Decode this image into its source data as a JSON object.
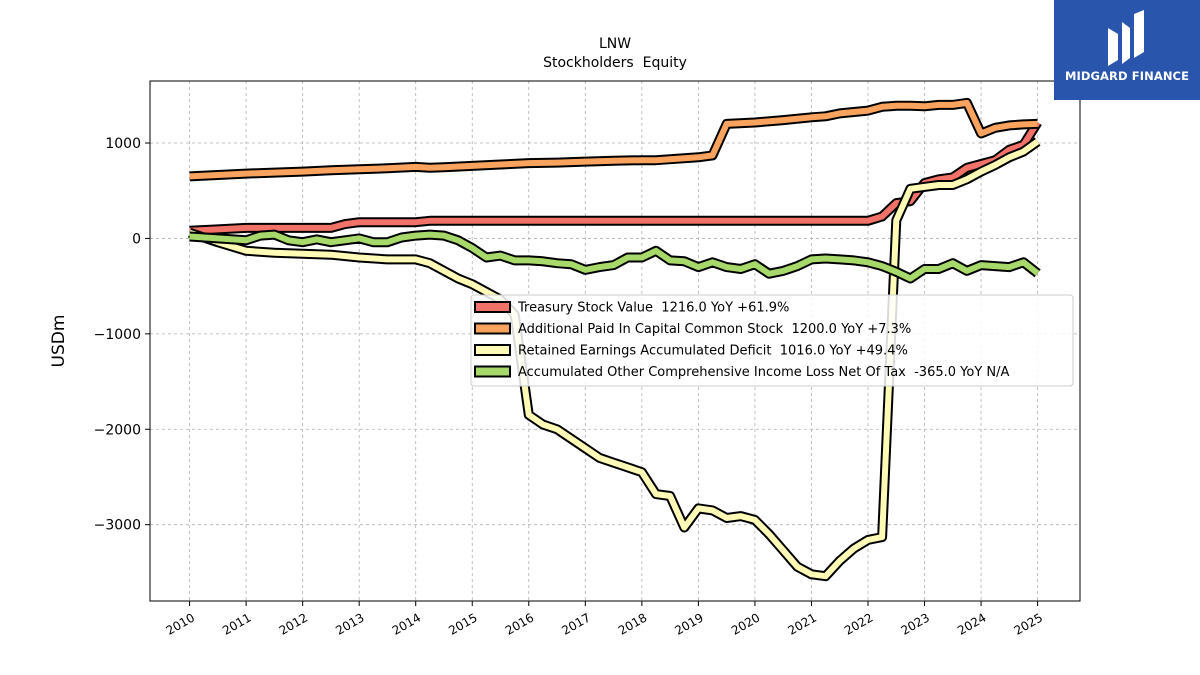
{
  "chart_data": {
    "type": "line",
    "title": "LNW",
    "subtitle": "Stockholders  Equity",
    "xlabel": "",
    "ylabel": "USDm",
    "xlim": [
      2009.3,
      2025.75
    ],
    "ylim": [
      -3800,
      1650
    ],
    "x_ticks": [
      "2010",
      "2011",
      "2012",
      "2013",
      "2014",
      "2015",
      "2016",
      "2017",
      "2018",
      "2019",
      "2020",
      "2021",
      "2022",
      "2023",
      "2024",
      "2025"
    ],
    "y_ticks": [
      1000,
      0,
      -1000,
      -2000,
      -3000
    ],
    "y_tick_labels": [
      "1000",
      "0",
      "−1000",
      "−2000",
      "−3000"
    ],
    "grid": true,
    "legend_placement": "center-right",
    "series": [
      {
        "name": "Treasury Stock Value  1216.0 YoY +61.9%",
        "color": "#f07268",
        "points": [
          [
            2010,
            80
          ],
          [
            2010.5,
            95
          ],
          [
            2011,
            110
          ],
          [
            2011.5,
            110
          ],
          [
            2012,
            110
          ],
          [
            2012.5,
            110
          ],
          [
            2012.75,
            150
          ],
          [
            2013,
            170
          ],
          [
            2013.5,
            170
          ],
          [
            2014,
            170
          ],
          [
            2014.25,
            185
          ],
          [
            2015,
            185
          ],
          [
            2016,
            185
          ],
          [
            2017,
            185
          ],
          [
            2018,
            185
          ],
          [
            2019,
            185
          ],
          [
            2020,
            185
          ],
          [
            2021,
            185
          ],
          [
            2021.5,
            185
          ],
          [
            2022,
            185
          ],
          [
            2022.25,
            230
          ],
          [
            2022.5,
            370
          ],
          [
            2022.75,
            390
          ],
          [
            2023,
            580
          ],
          [
            2023.25,
            620
          ],
          [
            2023.5,
            640
          ],
          [
            2023.75,
            740
          ],
          [
            2024,
            780
          ],
          [
            2024.25,
            820
          ],
          [
            2024.5,
            930
          ],
          [
            2024.75,
            980
          ],
          [
            2025,
            1216
          ]
        ]
      },
      {
        "name": "Additional Paid In Capital Common Stock  1200.0 YoY +7.3%",
        "color": "#f9a35e",
        "points": [
          [
            2010,
            650
          ],
          [
            2010.5,
            665
          ],
          [
            2011,
            680
          ],
          [
            2011.5,
            690
          ],
          [
            2012,
            700
          ],
          [
            2012.5,
            715
          ],
          [
            2013,
            725
          ],
          [
            2013.5,
            735
          ],
          [
            2014,
            750
          ],
          [
            2014.25,
            740
          ],
          [
            2014.5,
            745
          ],
          [
            2015,
            760
          ],
          [
            2015.5,
            775
          ],
          [
            2016,
            790
          ],
          [
            2016.5,
            795
          ],
          [
            2017,
            805
          ],
          [
            2017.5,
            815
          ],
          [
            2018,
            820
          ],
          [
            2018.25,
            820
          ],
          [
            2018.5,
            830
          ],
          [
            2019,
            850
          ],
          [
            2019.25,
            870
          ],
          [
            2019.5,
            1200
          ],
          [
            2020,
            1215
          ],
          [
            2020.5,
            1240
          ],
          [
            2021,
            1270
          ],
          [
            2021.25,
            1280
          ],
          [
            2021.5,
            1310
          ],
          [
            2022,
            1340
          ],
          [
            2022.25,
            1380
          ],
          [
            2022.5,
            1390
          ],
          [
            2022.75,
            1390
          ],
          [
            2023,
            1385
          ],
          [
            2023.25,
            1400
          ],
          [
            2023.5,
            1400
          ],
          [
            2023.75,
            1420
          ],
          [
            2024,
            1100
          ],
          [
            2024.25,
            1160
          ],
          [
            2024.5,
            1185
          ],
          [
            2024.75,
            1195
          ],
          [
            2025,
            1200
          ]
        ]
      },
      {
        "name": "Retained Earnings Accumulated Deficit  1016.0 YoY +49.4%",
        "color": "#fdfbb5",
        "points": [
          [
            2010,
            60
          ],
          [
            2010.5,
            -40
          ],
          [
            2011,
            -130
          ],
          [
            2011.5,
            -150
          ],
          [
            2012,
            -160
          ],
          [
            2012.5,
            -170
          ],
          [
            2013,
            -200
          ],
          [
            2013.5,
            -220
          ],
          [
            2014,
            -220
          ],
          [
            2014.25,
            -260
          ],
          [
            2014.5,
            -340
          ],
          [
            2014.75,
            -420
          ],
          [
            2015,
            -480
          ],
          [
            2015.25,
            -560
          ],
          [
            2015.5,
            -640
          ],
          [
            2015.75,
            -800
          ],
          [
            2016,
            -1850
          ],
          [
            2016.25,
            -1950
          ],
          [
            2016.5,
            -2000
          ],
          [
            2016.75,
            -2100
          ],
          [
            2017,
            -2200
          ],
          [
            2017.25,
            -2300
          ],
          [
            2017.5,
            -2350
          ],
          [
            2017.75,
            -2400
          ],
          [
            2018,
            -2450
          ],
          [
            2018.25,
            -2680
          ],
          [
            2018.5,
            -2700
          ],
          [
            2018.75,
            -3030
          ],
          [
            2019,
            -2830
          ],
          [
            2019.25,
            -2850
          ],
          [
            2019.5,
            -2930
          ],
          [
            2019.75,
            -2910
          ],
          [
            2020,
            -2950
          ],
          [
            2020.25,
            -3100
          ],
          [
            2020.5,
            -3270
          ],
          [
            2020.75,
            -3440
          ],
          [
            2021,
            -3520
          ],
          [
            2021.25,
            -3540
          ],
          [
            2021.5,
            -3380
          ],
          [
            2021.75,
            -3250
          ],
          [
            2022,
            -3160
          ],
          [
            2022.25,
            -3130
          ],
          [
            2022.5,
            190
          ],
          [
            2022.75,
            520
          ],
          [
            2023,
            540
          ],
          [
            2023.25,
            560
          ],
          [
            2023.5,
            560
          ],
          [
            2023.75,
            620
          ],
          [
            2024,
            700
          ],
          [
            2024.25,
            770
          ],
          [
            2024.5,
            850
          ],
          [
            2024.75,
            910
          ],
          [
            2025,
            1016
          ]
        ]
      },
      {
        "name": "Accumulated Other Comprehensive Income Loss Net Of Tax  -365.0 YoY N/A",
        "color": "#a6d96a",
        "points": [
          [
            2010,
            20
          ],
          [
            2010.5,
            0
          ],
          [
            2011,
            -20
          ],
          [
            2011.25,
            30
          ],
          [
            2011.5,
            40
          ],
          [
            2011.75,
            -20
          ],
          [
            2012,
            -40
          ],
          [
            2012.25,
            -10
          ],
          [
            2012.5,
            -40
          ],
          [
            2012.75,
            -20
          ],
          [
            2013,
            0
          ],
          [
            2013.25,
            -40
          ],
          [
            2013.5,
            -40
          ],
          [
            2013.75,
            10
          ],
          [
            2014,
            30
          ],
          [
            2014.25,
            40
          ],
          [
            2014.5,
            30
          ],
          [
            2014.75,
            -20
          ],
          [
            2015,
            -100
          ],
          [
            2015.25,
            -200
          ],
          [
            2015.5,
            -180
          ],
          [
            2015.75,
            -230
          ],
          [
            2016,
            -230
          ],
          [
            2016.25,
            -240
          ],
          [
            2016.5,
            -260
          ],
          [
            2016.75,
            -270
          ],
          [
            2017,
            -330
          ],
          [
            2017.25,
            -300
          ],
          [
            2017.5,
            -280
          ],
          [
            2017.75,
            -200
          ],
          [
            2018,
            -200
          ],
          [
            2018.25,
            -130
          ],
          [
            2018.5,
            -230
          ],
          [
            2018.75,
            -240
          ],
          [
            2019,
            -300
          ],
          [
            2019.25,
            -250
          ],
          [
            2019.5,
            -300
          ],
          [
            2019.75,
            -320
          ],
          [
            2020,
            -270
          ],
          [
            2020.25,
            -370
          ],
          [
            2020.5,
            -340
          ],
          [
            2020.75,
            -290
          ],
          [
            2021,
            -220
          ],
          [
            2021.25,
            -210
          ],
          [
            2021.5,
            -220
          ],
          [
            2021.75,
            -230
          ],
          [
            2022,
            -250
          ],
          [
            2022.25,
            -290
          ],
          [
            2022.5,
            -350
          ],
          [
            2022.75,
            -420
          ],
          [
            2023,
            -320
          ],
          [
            2023.25,
            -320
          ],
          [
            2023.5,
            -260
          ],
          [
            2023.75,
            -340
          ],
          [
            2024,
            -280
          ],
          [
            2024.25,
            -290
          ],
          [
            2024.5,
            -300
          ],
          [
            2024.75,
            -250
          ],
          [
            2025,
            -365
          ]
        ]
      }
    ]
  },
  "logo": {
    "text": "MIDGARD FINANCE",
    "background": "#2a55ad"
  }
}
